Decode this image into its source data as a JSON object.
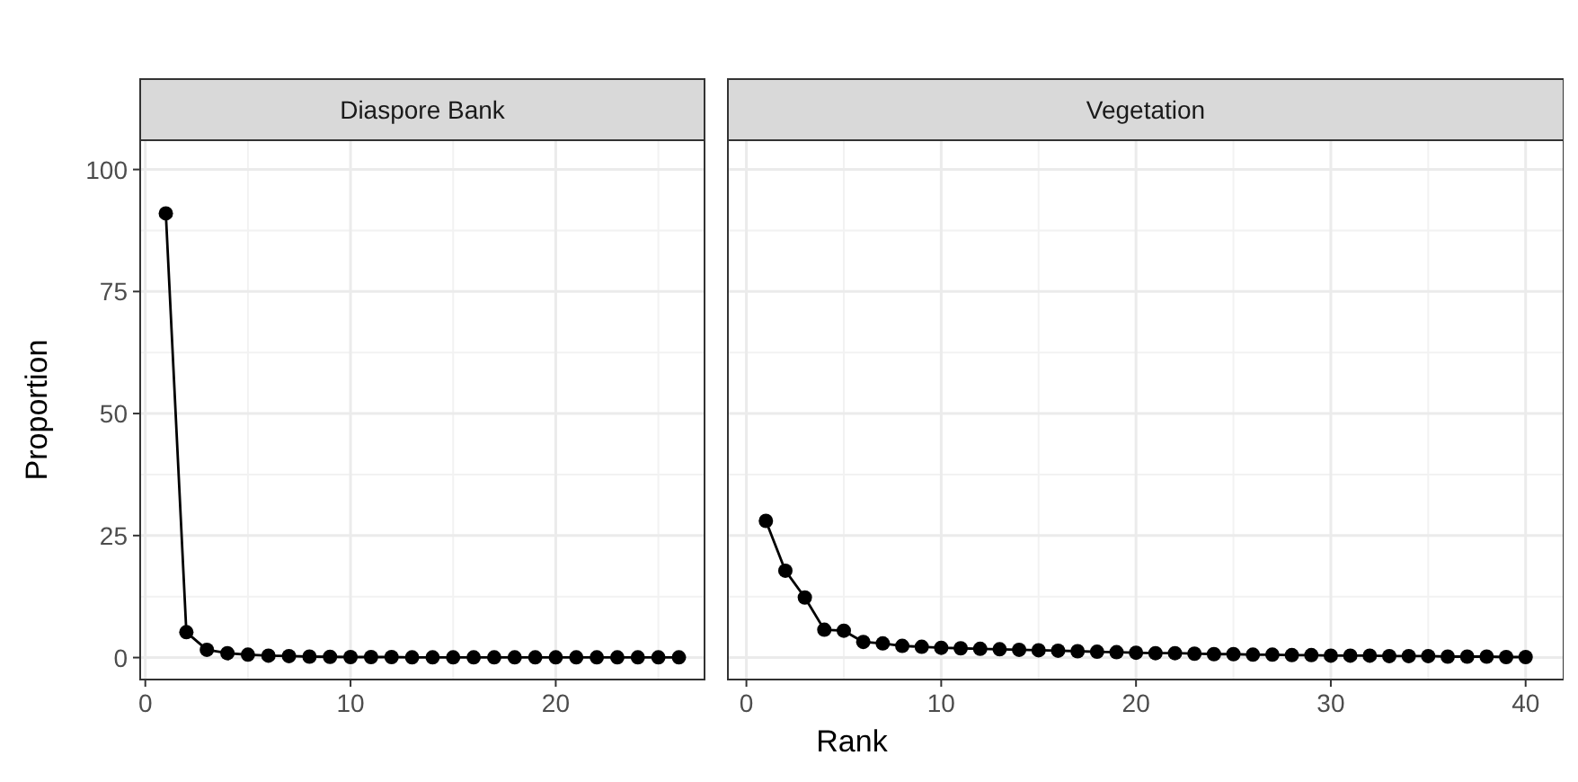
{
  "chart_data": [
    {
      "type": "line",
      "title": "Diaspore Bank",
      "ylabel": "Proportion",
      "marker": "circle",
      "grid": true,
      "x": [
        1,
        2,
        3,
        4,
        5,
        6,
        7,
        8,
        9,
        10,
        11,
        12,
        13,
        14,
        15,
        16,
        17,
        18,
        19,
        20,
        21,
        22,
        23,
        24,
        25,
        26
      ],
      "series": [
        {
          "color": "#000000",
          "values": [
            91,
            5.2,
            1.6,
            0.9,
            0.6,
            0.4,
            0.3,
            0.2,
            0.15,
            0.1,
            0.1,
            0.1,
            0.05,
            0.05,
            0.05,
            0.05,
            0.05,
            0.05,
            0.05,
            0.05,
            0.05,
            0.05,
            0.05,
            0.05,
            0.05,
            0.05
          ]
        }
      ],
      "xlim": [
        -0.25,
        27.25
      ],
      "xticks": [
        0,
        10,
        20
      ],
      "ylim": [
        -4.5,
        106
      ],
      "yticks": [
        0,
        25,
        50,
        75,
        100
      ]
    },
    {
      "type": "line",
      "title": "Vegetation",
      "xlabel": "Rank",
      "marker": "circle",
      "grid": true,
      "tick_labels": "x",
      "x": [
        1,
        2,
        3,
        4,
        5,
        6,
        7,
        8,
        9,
        10,
        11,
        12,
        13,
        14,
        15,
        16,
        17,
        18,
        19,
        20,
        21,
        22,
        23,
        24,
        25,
        26,
        27,
        28,
        29,
        30,
        31,
        32,
        33,
        34,
        35,
        36,
        37,
        38,
        39,
        40
      ],
      "series": [
        {
          "color": "#000000",
          "values": [
            28,
            17.8,
            12.3,
            5.7,
            5.5,
            3.2,
            2.9,
            2.4,
            2.2,
            2.0,
            1.9,
            1.8,
            1.7,
            1.6,
            1.5,
            1.4,
            1.3,
            1.2,
            1.1,
            1.0,
            0.9,
            0.9,
            0.8,
            0.7,
            0.7,
            0.6,
            0.6,
            0.5,
            0.5,
            0.4,
            0.4,
            0.4,
            0.3,
            0.3,
            0.3,
            0.2,
            0.2,
            0.2,
            0.1,
            0.1
          ]
        }
      ],
      "xlim": [
        -0.95,
        41.95
      ],
      "xticks": [
        0,
        10,
        20,
        30,
        40
      ],
      "ylim": [
        -4.5,
        106
      ],
      "yticks": [
        0,
        25,
        50,
        75,
        100
      ]
    }
  ]
}
